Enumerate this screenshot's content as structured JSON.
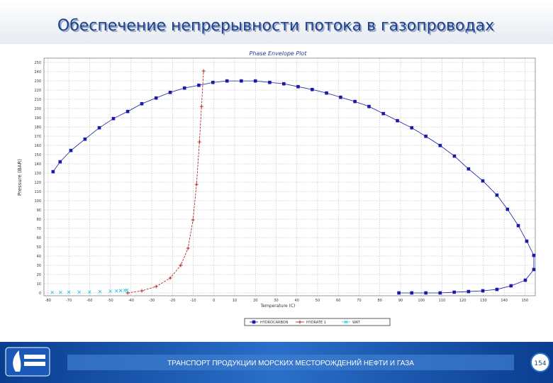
{
  "slide": {
    "title": "Обеспечение непрерывности потока в газопроводах",
    "footer": "ТРАНСПОРТ ПРОДУКЦИИ МОРСКИХ МЕСТОРОЖДЕНИЙ НЕФТИ И ГАЗА",
    "page": "154"
  },
  "chart_data": {
    "type": "scatter",
    "title": "Phase Envelope Plot",
    "x_label": "Temperature (C)",
    "y_label": "Pressure (BAR)",
    "xlim": [
      -82,
      155
    ],
    "ylim": [
      0,
      250
    ],
    "xticks": [
      -80,
      -70,
      -60,
      -50,
      -40,
      -30,
      -20,
      -10,
      0,
      10,
      20,
      30,
      40,
      50,
      60,
      70,
      80,
      90,
      100,
      110,
      120,
      130,
      140,
      150
    ],
    "yticks": [
      0,
      10,
      20,
      30,
      40,
      50,
      60,
      70,
      80,
      90,
      100,
      110,
      120,
      130,
      140,
      150,
      160,
      170,
      180,
      190,
      200,
      210,
      220,
      230,
      240,
      250
    ],
    "grid": true,
    "series": [
      {
        "name": "HYDROCARBON",
        "color": "#1a1aa8",
        "marker": "square",
        "line": true,
        "x": [
          -77.6,
          -74.2,
          -69,
          -62.2,
          -55.3,
          -48.5,
          -41.6,
          -34.8,
          -27.9,
          -21.1,
          -14.2,
          -7.3,
          -0.5,
          6.3,
          13.2,
          20,
          26.9,
          33.7,
          40.6,
          47.4,
          54.3,
          61.1,
          68,
          74.8,
          81.7,
          88.5,
          95.4,
          102.2,
          109.1,
          116,
          122.8,
          129.7,
          136.5,
          141.6,
          146.8,
          150.9,
          154.3,
          154.3,
          150.2,
          143.3,
          136.5,
          129.7,
          122.8,
          115.9,
          109.1,
          102.2,
          95.4,
          89.2
        ],
        "values": [
          131.5,
          142.2,
          154.5,
          166.8,
          179.1,
          189.1,
          196.8,
          205.2,
          211.4,
          217.5,
          222.2,
          225.2,
          228.3,
          229.9,
          229.9,
          229.9,
          228.3,
          226.8,
          223.7,
          220.6,
          216.8,
          212.2,
          207.6,
          202.2,
          194.5,
          186.8,
          179.1,
          169.9,
          159.9,
          148.4,
          134.5,
          121.5,
          106.1,
          90.7,
          73,
          56.1,
          40.7,
          25.4,
          13.8,
          7.7,
          3.8,
          2.3,
          1.5,
          0.8,
          0,
          0,
          0,
          0
        ]
      },
      {
        "name": "HYDRATE 1",
        "color": "#b01818",
        "marker": "plus",
        "line": true,
        "x": [
          -41.6,
          -34.8,
          -27.9,
          -21.1,
          -16,
          -12.5,
          -10.1,
          -8.4,
          -7,
          -6,
          -5
        ],
        "values": [
          0,
          2.3,
          6.9,
          16.1,
          30,
          48.4,
          79.2,
          117.6,
          163.8,
          202.2,
          240.7
        ]
      },
      {
        "name": "WAT",
        "color": "#33c8d8",
        "marker": "cross",
        "line": false,
        "x": [
          -78,
          -74,
          -70,
          -65,
          -60,
          -55,
          -50,
          -47,
          -45,
          -43,
          -42
        ],
        "values": [
          0.5,
          0.6,
          0.8,
          0.9,
          1,
          1.5,
          2,
          2.2,
          2.5,
          2.8,
          3
        ]
      }
    ]
  }
}
